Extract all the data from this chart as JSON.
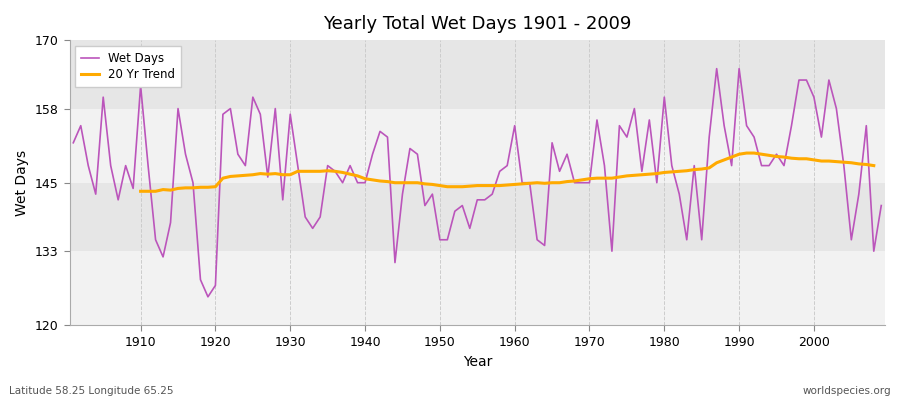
{
  "title": "Yearly Total Wet Days 1901 - 2009",
  "xlabel": "Year",
  "ylabel": "Wet Days",
  "footnote_left": "Latitude 58.25 Longitude 65.25",
  "footnote_right": "worldspecies.org",
  "ylim": [
    120,
    170
  ],
  "yticks": [
    120,
    133,
    145,
    158,
    170
  ],
  "xlim": [
    1901,
    2009
  ],
  "xticks": [
    1910,
    1920,
    1930,
    1940,
    1950,
    1960,
    1970,
    1980,
    1990,
    2000
  ],
  "line_color": "#bb55bb",
  "trend_color": "#ffaa00",
  "bg_color": "#ffffff",
  "plot_bg_color": "#f0f0f0",
  "band_color_light": "#f5f5f5",
  "band_color_dark": "#e8e8e8",
  "legend_labels": [
    "Wet Days",
    "20 Yr Trend"
  ],
  "years": [
    1901,
    1902,
    1903,
    1904,
    1905,
    1906,
    1907,
    1908,
    1909,
    1910,
    1911,
    1912,
    1913,
    1914,
    1915,
    1916,
    1917,
    1918,
    1919,
    1920,
    1921,
    1922,
    1923,
    1924,
    1925,
    1926,
    1927,
    1928,
    1929,
    1930,
    1931,
    1932,
    1933,
    1934,
    1935,
    1936,
    1937,
    1938,
    1939,
    1940,
    1941,
    1942,
    1943,
    1944,
    1945,
    1946,
    1947,
    1948,
    1949,
    1950,
    1951,
    1952,
    1953,
    1954,
    1955,
    1956,
    1957,
    1958,
    1959,
    1960,
    1961,
    1962,
    1963,
    1964,
    1965,
    1966,
    1967,
    1968,
    1969,
    1970,
    1971,
    1972,
    1973,
    1974,
    1975,
    1976,
    1977,
    1978,
    1979,
    1980,
    1981,
    1982,
    1983,
    1984,
    1985,
    1986,
    1987,
    1988,
    1989,
    1990,
    1991,
    1992,
    1993,
    1994,
    1995,
    1996,
    1997,
    1998,
    1999,
    2000,
    2001,
    2002,
    2003,
    2004,
    2005,
    2006,
    2007,
    2008,
    2009
  ],
  "wet_days": [
    152,
    155,
    148,
    143,
    160,
    148,
    142,
    148,
    144,
    162,
    148,
    135,
    132,
    138,
    158,
    150,
    145,
    128,
    125,
    127,
    157,
    158,
    150,
    148,
    160,
    157,
    146,
    158,
    142,
    157,
    148,
    139,
    137,
    139,
    148,
    147,
    145,
    148,
    145,
    145,
    150,
    154,
    153,
    131,
    143,
    151,
    150,
    141,
    143,
    135,
    135,
    140,
    141,
    137,
    142,
    142,
    143,
    147,
    148,
    155,
    145,
    145,
    135,
    134,
    152,
    147,
    150,
    145,
    145,
    145,
    156,
    148,
    133,
    155,
    153,
    158,
    147,
    156,
    145,
    160,
    148,
    143,
    135,
    148,
    135,
    153,
    165,
    155,
    148,
    165,
    155,
    153,
    148,
    148,
    150,
    148,
    155,
    163,
    163,
    160,
    153,
    163,
    158,
    148,
    135,
    143,
    155,
    133,
    141
  ],
  "trend": [
    null,
    null,
    null,
    null,
    null,
    null,
    null,
    null,
    null,
    143.5,
    143.5,
    143.5,
    143.8,
    143.7,
    144.0,
    144.1,
    144.1,
    144.2,
    144.2,
    144.3,
    145.8,
    146.1,
    146.2,
    146.3,
    146.4,
    146.6,
    146.5,
    146.6,
    146.4,
    146.4,
    147.0,
    147.0,
    147.0,
    147.0,
    147.1,
    147.0,
    146.8,
    146.5,
    146.2,
    145.7,
    145.5,
    145.3,
    145.2,
    145.0,
    145.0,
    145.0,
    145.0,
    144.8,
    144.7,
    144.5,
    144.3,
    144.3,
    144.3,
    144.4,
    144.5,
    144.5,
    144.5,
    144.5,
    144.6,
    144.7,
    144.8,
    144.9,
    145.0,
    144.9,
    145.0,
    145.0,
    145.2,
    145.3,
    145.5,
    145.7,
    145.8,
    145.8,
    145.8,
    146.0,
    146.2,
    146.3,
    146.4,
    146.5,
    146.6,
    146.8,
    146.9,
    147.0,
    147.1,
    147.3,
    147.4,
    147.6,
    148.5,
    149.0,
    149.5,
    150.0,
    150.2,
    150.2,
    150.0,
    149.8,
    149.6,
    149.5,
    149.3,
    149.2,
    149.2,
    149.0,
    148.8,
    148.8,
    148.7,
    148.6,
    148.5,
    148.3,
    148.2,
    148.0,
    null
  ]
}
